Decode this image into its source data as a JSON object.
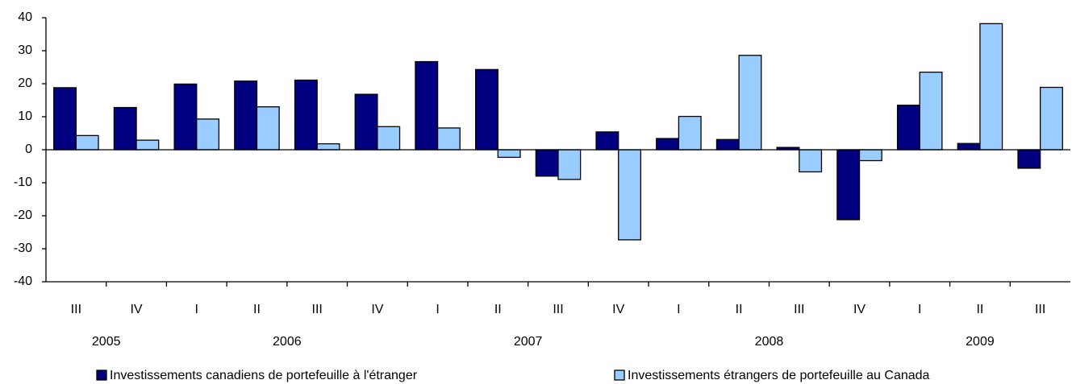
{
  "chart_data": {
    "type": "bar",
    "categories": [
      "III",
      "IV",
      "I",
      "II",
      "III",
      "IV",
      "I",
      "II",
      "III",
      "IV",
      "I",
      "II",
      "III",
      "IV",
      "I",
      "II",
      "III"
    ],
    "groups": [
      {
        "name": "2005",
        "count": 2
      },
      {
        "name": "2006",
        "count": 4
      },
      {
        "name": "2007",
        "count": 4
      },
      {
        "name": "2008",
        "count": 4
      },
      {
        "name": "2009",
        "count": 3
      }
    ],
    "series": [
      {
        "name": "Investissements canadiens de portefeuille à l'étranger",
        "color": "#000080",
        "values": [
          18.8,
          12.8,
          19.9,
          20.8,
          21.1,
          16.8,
          26.7,
          24.3,
          -8.0,
          5.4,
          3.4,
          3.1,
          0.7,
          -21.2,
          13.5,
          1.9,
          -5.6
        ]
      },
      {
        "name": "Investissements étrangers de portefeuille au Canada",
        "color": "#99ccff",
        "values": [
          4.3,
          2.9,
          9.3,
          13.0,
          1.8,
          7.0,
          6.6,
          -2.3,
          -9.0,
          -27.3,
          10.1,
          28.6,
          -6.7,
          -3.3,
          23.5,
          38.2,
          18.9
        ]
      }
    ],
    "ylim": [
      -40,
      40
    ],
    "yticks": [
      -40,
      -30,
      -20,
      -10,
      0,
      10,
      20,
      30,
      40
    ]
  }
}
